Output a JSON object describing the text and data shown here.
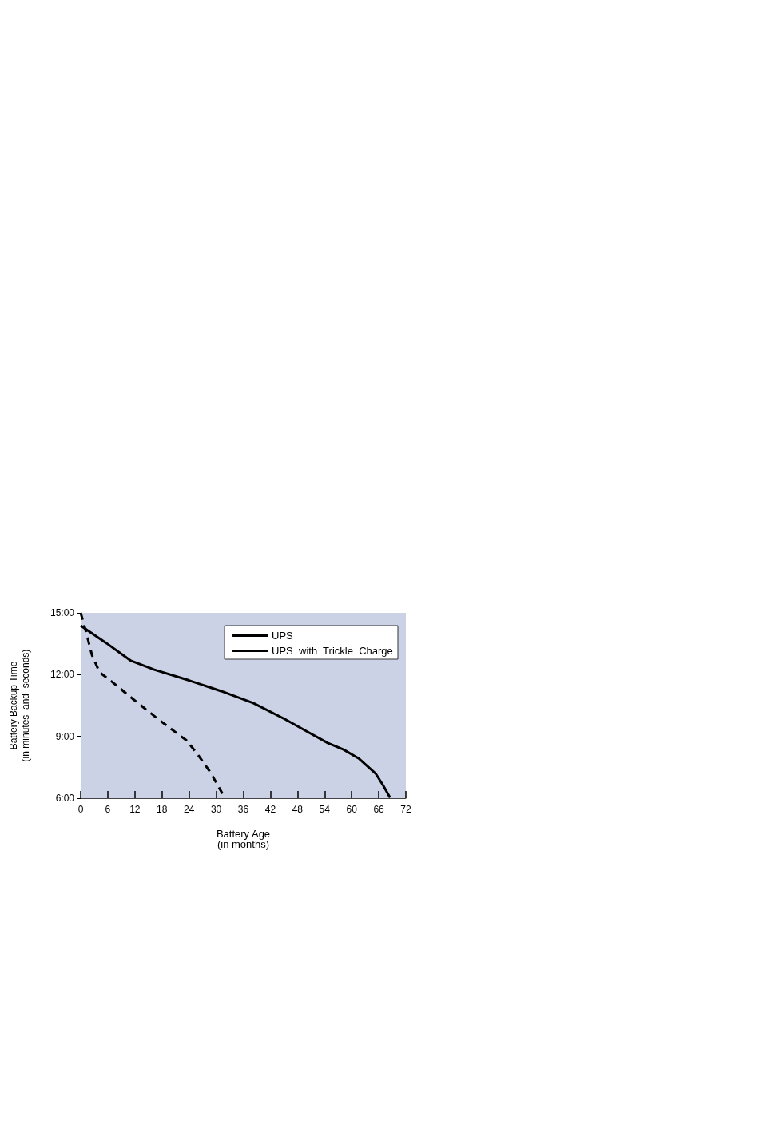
{
  "chart_data": {
    "type": "line",
    "xlabel": "Battery Age\n(in months)",
    "ylabel": "Battery Backup Time\n(in minutes  and  seconds)",
    "series": [
      {
        "name": "UPS",
        "color": "#000000",
        "line_style": "solid",
        "x": [
          0,
          5.7,
          11.0,
          16.3,
          24.0,
          31.1,
          38.2,
          45.2,
          50.5,
          54.7,
          58.2,
          61.7,
          65.3,
          67.0,
          68.5
        ],
        "values": [
          14.38,
          13.53,
          12.69,
          12.24,
          11.72,
          11.2,
          10.62,
          9.84,
          9.19,
          8.68,
          8.36,
          7.91,
          7.2,
          6.61,
          6.03
        ]
      },
      {
        "name": "UPS  with  Trickle  Charge",
        "color": "#000000",
        "line_style": "dashed",
        "x": [
          0,
          1.3,
          2.5,
          4.2,
          6.9,
          11.6,
          17.5,
          23.4,
          25.8,
          28.7,
          31.9
        ],
        "values": [
          15,
          13.98,
          12.95,
          12.11,
          11.66,
          10.81,
          9.78,
          8.81,
          8.16,
          7.26,
          6.03
        ]
      }
    ],
    "xlim": [
      0,
      72
    ],
    "xticks": [
      0,
      6,
      12,
      18,
      24,
      30,
      36,
      42,
      48,
      54,
      60,
      66,
      72
    ],
    "ylim": [
      6,
      15
    ],
    "yticks": [
      {
        "value": 6,
        "label": "6:00"
      },
      {
        "value": 9,
        "label": "9:00"
      },
      {
        "value": 12,
        "label": "12:00"
      },
      {
        "value": 15,
        "label": "15:00"
      }
    ],
    "grid": false,
    "legend": "top right",
    "marker": "none"
  }
}
